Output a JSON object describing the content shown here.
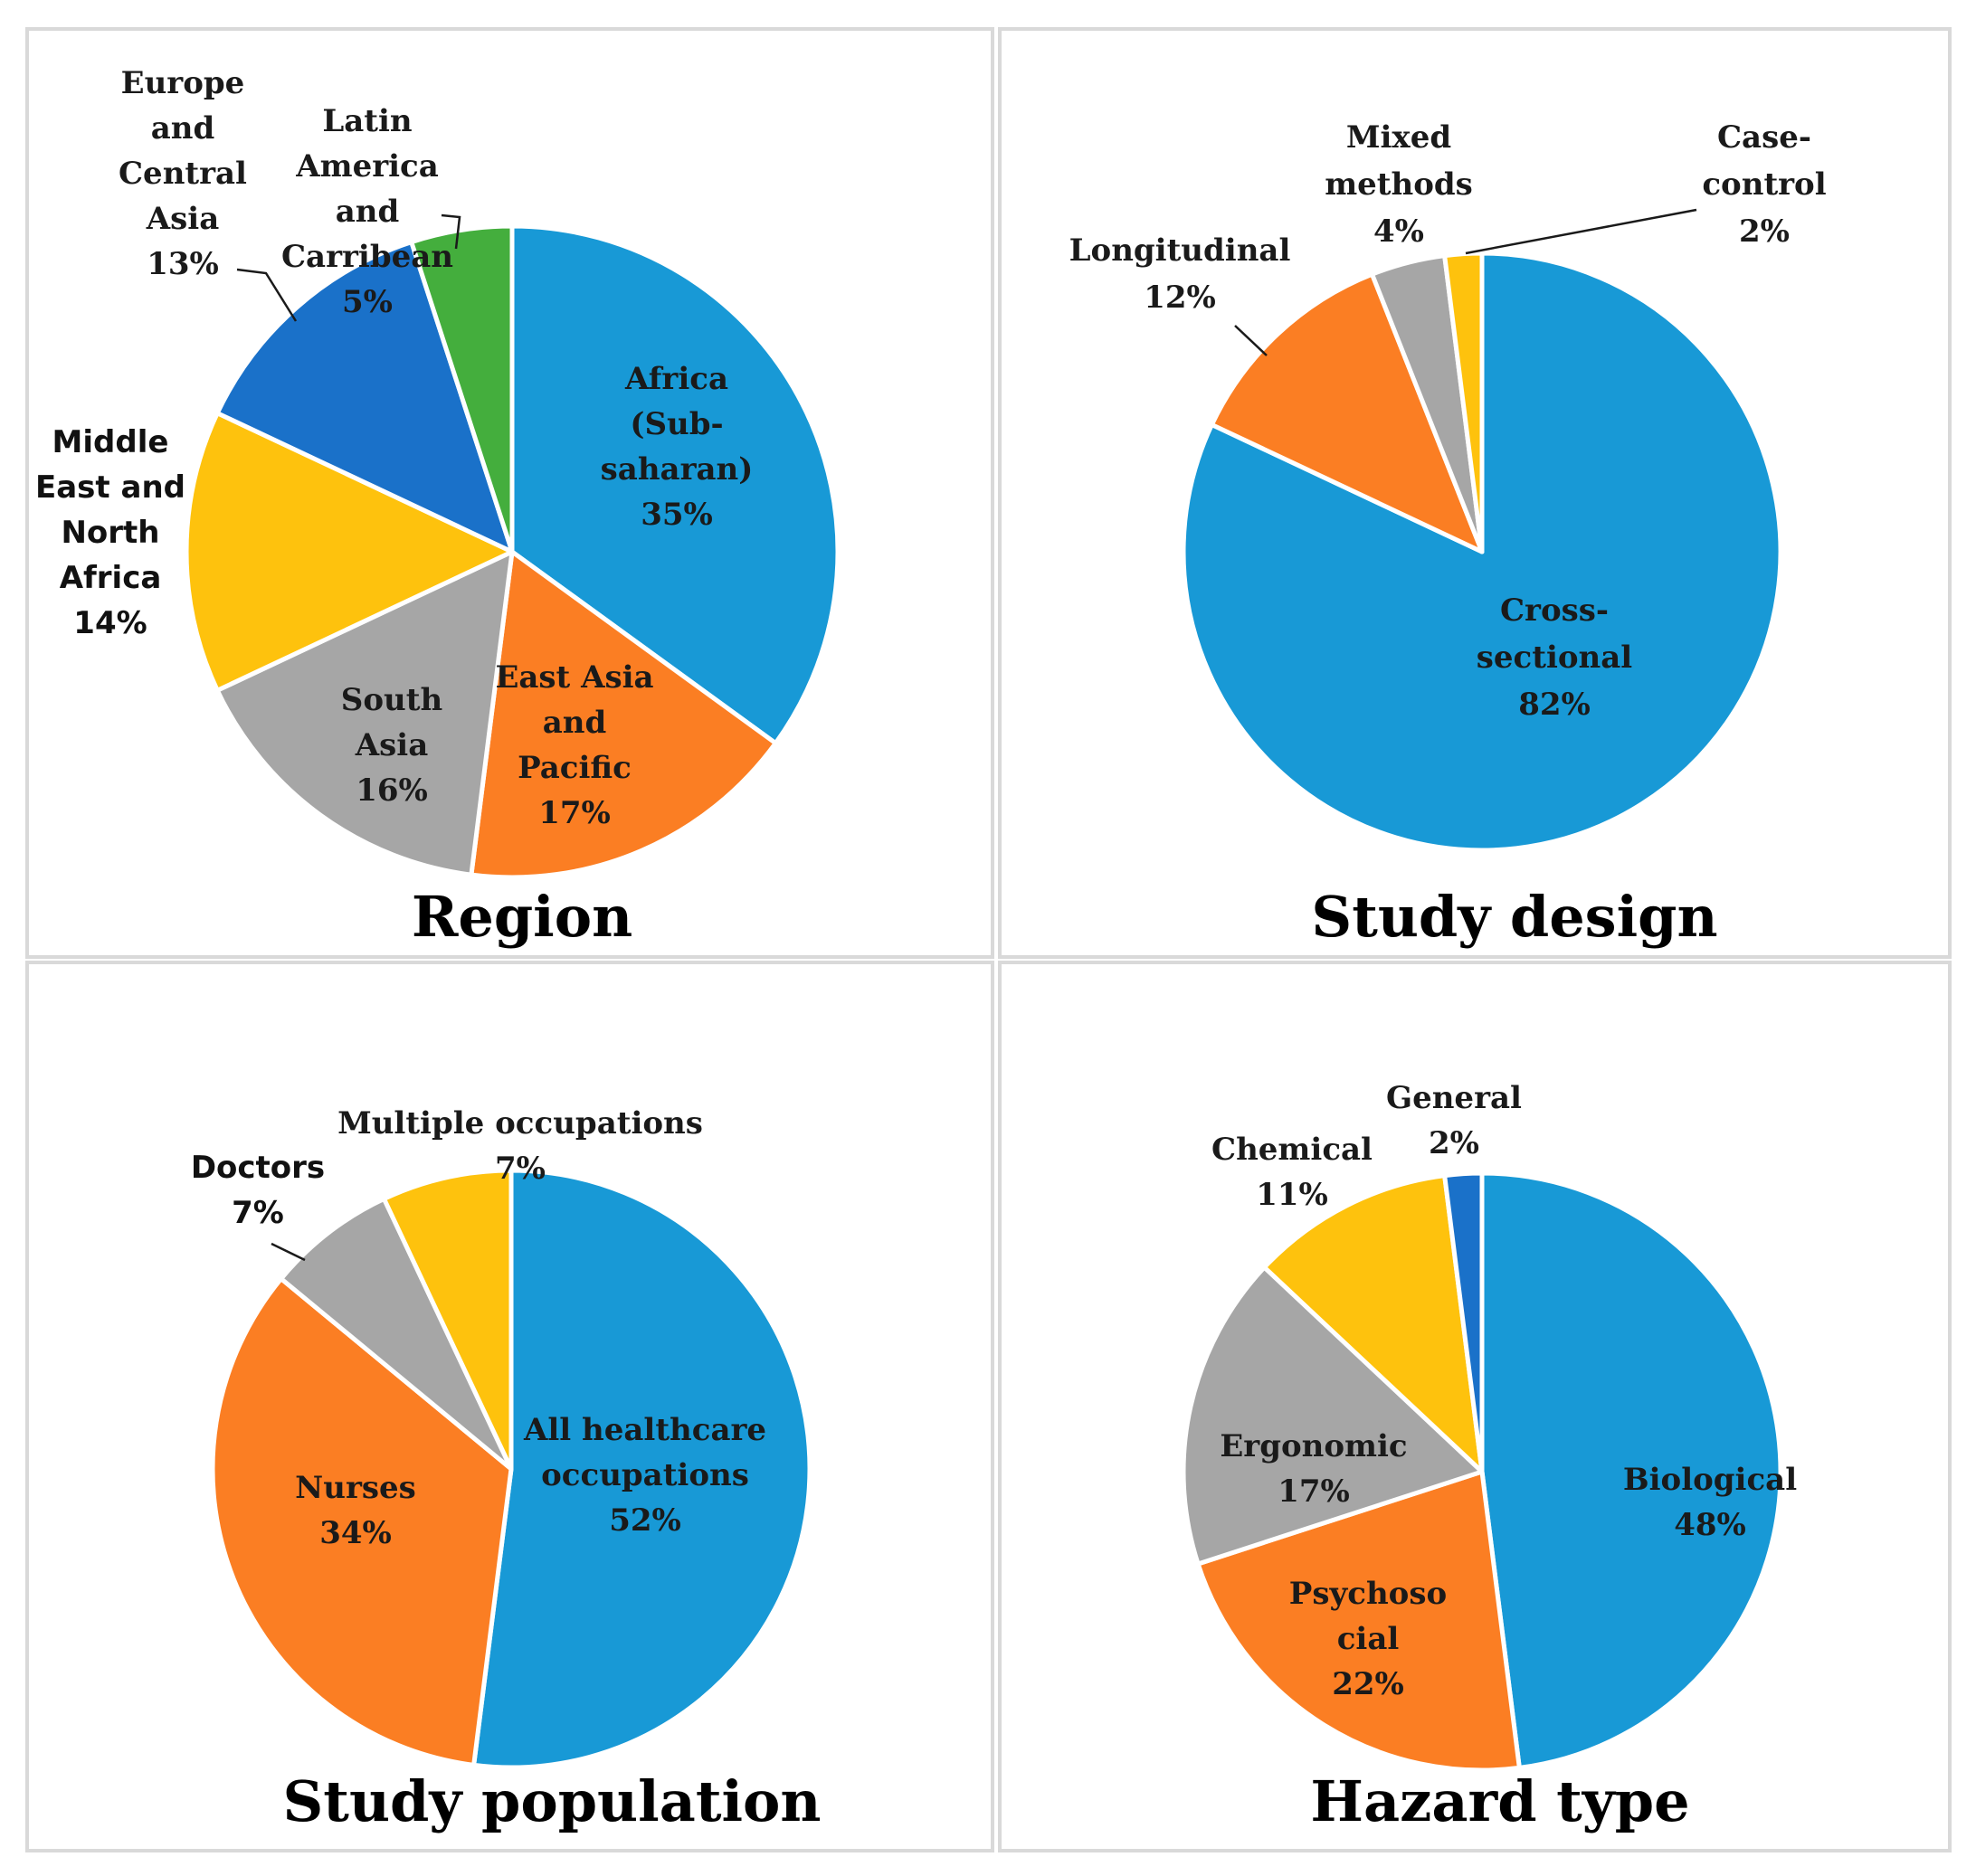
{
  "chart_data": [
    {
      "type": "pie",
      "title": "Region",
      "slices": [
        {
          "label": [
            "Africa",
            "(Sub-",
            "saharan)"
          ],
          "value": 35,
          "value_label": "35%",
          "color": "#1899d6"
        },
        {
          "label": [
            "East Asia",
            "and",
            "Pacific"
          ],
          "value": 17,
          "value_label": "17%",
          "color": "#fb7e23"
        },
        {
          "label": [
            "South",
            "Asia"
          ],
          "value": 16,
          "value_label": "16%",
          "color": "#a6a6a6"
        },
        {
          "label": [
            "Middle",
            "East and",
            "North",
            "Africa"
          ],
          "value": 14,
          "value_label": "14%",
          "color": "#fec20d"
        },
        {
          "label": [
            "Europe",
            "and",
            "Central",
            "Asia"
          ],
          "value": 13,
          "value_label": "13%",
          "color": "#1a71c9"
        },
        {
          "label": [
            "Latin",
            "America",
            "and",
            "Carribean"
          ],
          "value": 5,
          "value_label": "5%",
          "color": "#44ae3d"
        }
      ]
    },
    {
      "type": "pie",
      "title": "Study design",
      "slices": [
        {
          "label": [
            "Cross-",
            "sectional"
          ],
          "value": 82,
          "value_label": "82%",
          "color": "#1899d6"
        },
        {
          "label": [
            "Longitudinal"
          ],
          "value": 12,
          "value_label": "12%",
          "color": "#fb7e23"
        },
        {
          "label": [
            "Mixed",
            "methods"
          ],
          "value": 4,
          "value_label": "4%",
          "color": "#a6a6a6"
        },
        {
          "label": [
            "Case-",
            "control"
          ],
          "value": 2,
          "value_label": "2%",
          "color": "#fec20d"
        }
      ]
    },
    {
      "type": "pie",
      "title": "Study population",
      "slices": [
        {
          "label": [
            "All healthcare",
            "occupations"
          ],
          "value": 52,
          "value_label": "52%",
          "color": "#1899d6"
        },
        {
          "label": [
            "Nurses"
          ],
          "value": 34,
          "value_label": "34%",
          "color": "#fb7e23"
        },
        {
          "label": [
            "Doctors"
          ],
          "value": 7,
          "value_label": "7%",
          "color": "#a6a6a6"
        },
        {
          "label": [
            "Multiple occupations"
          ],
          "value": 7,
          "value_label": "7%",
          "color": "#fec20d"
        }
      ]
    },
    {
      "type": "pie",
      "title": "Hazard type",
      "slices": [
        {
          "label": [
            "Biological"
          ],
          "value": 48,
          "value_label": "48%",
          "color": "#1899d6"
        },
        {
          "label": [
            "Psychoso",
            "cial"
          ],
          "value": 22,
          "value_label": "22%",
          "color": "#fb7e23"
        },
        {
          "label": [
            "Ergonomic"
          ],
          "value": 17,
          "value_label": "17%",
          "color": "#a6a6a6"
        },
        {
          "label": [
            "Chemical"
          ],
          "value": 11,
          "value_label": "11%",
          "color": "#fec20d"
        },
        {
          "label": [
            "General"
          ],
          "value": 2,
          "value_label": "2%",
          "color": "#1a71c9"
        }
      ]
    }
  ]
}
